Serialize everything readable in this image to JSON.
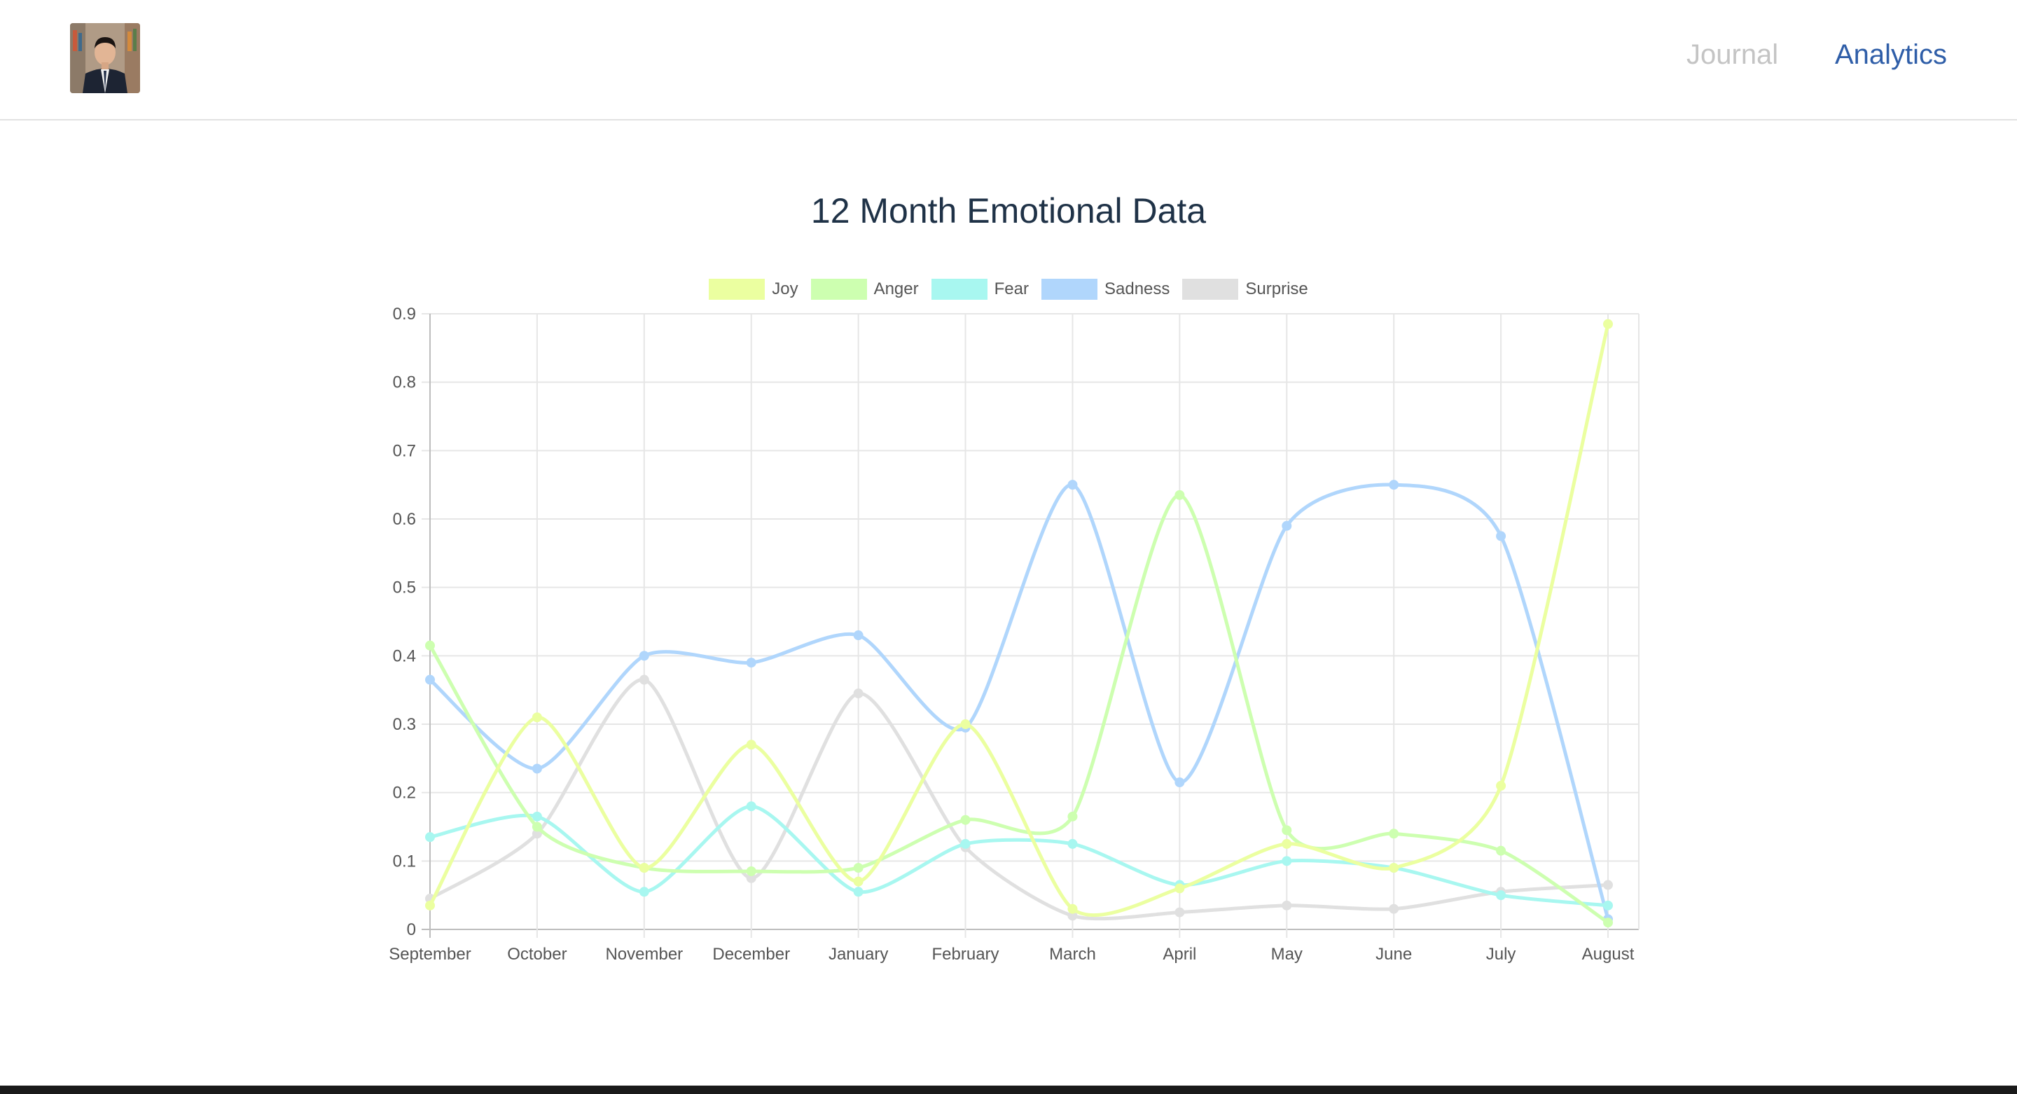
{
  "nav": {
    "links": [
      {
        "label": "Journal",
        "active": false
      },
      {
        "label": "Analytics",
        "active": true
      }
    ],
    "colors": {
      "inactive": "#c4c4c4",
      "active": "#2f5ea8"
    }
  },
  "chart_data": {
    "type": "line",
    "title": "12 Month Emotional Data",
    "xlabel": "",
    "ylabel": "",
    "categories": [
      "September",
      "October",
      "November",
      "December",
      "January",
      "February",
      "March",
      "April",
      "May",
      "June",
      "July",
      "August"
    ],
    "ylim": [
      0,
      0.9
    ],
    "yticks": [
      "0",
      "0.1",
      "0.2",
      "0.3",
      "0.4",
      "0.5",
      "0.6",
      "0.7",
      "0.8",
      "0.9"
    ],
    "grid": true,
    "legend_position": "top",
    "series": [
      {
        "name": "Joy",
        "color": "#ebffa0",
        "values": [
          0.035,
          0.31,
          0.09,
          0.27,
          0.07,
          0.3,
          0.03,
          0.06,
          0.125,
          0.09,
          0.21,
          0.885
        ]
      },
      {
        "name": "Anger",
        "color": "#cdffb0",
        "values": [
          0.415,
          0.15,
          0.09,
          0.085,
          0.09,
          0.16,
          0.165,
          0.635,
          0.145,
          0.14,
          0.115,
          0.01
        ]
      },
      {
        "name": "Fear",
        "color": "#a8f7f0",
        "values": [
          0.135,
          0.165,
          0.055,
          0.18,
          0.055,
          0.125,
          0.125,
          0.065,
          0.1,
          0.09,
          0.05,
          0.035
        ]
      },
      {
        "name": "Sadness",
        "color": "#b0d6fc",
        "values": [
          0.365,
          0.235,
          0.4,
          0.39,
          0.43,
          0.295,
          0.65,
          0.215,
          0.59,
          0.65,
          0.575,
          0.015
        ]
      },
      {
        "name": "Surprise",
        "color": "#e0e0e0",
        "values": [
          0.045,
          0.14,
          0.365,
          0.075,
          0.345,
          0.12,
          0.02,
          0.025,
          0.035,
          0.03,
          0.055,
          0.065
        ]
      }
    ]
  }
}
